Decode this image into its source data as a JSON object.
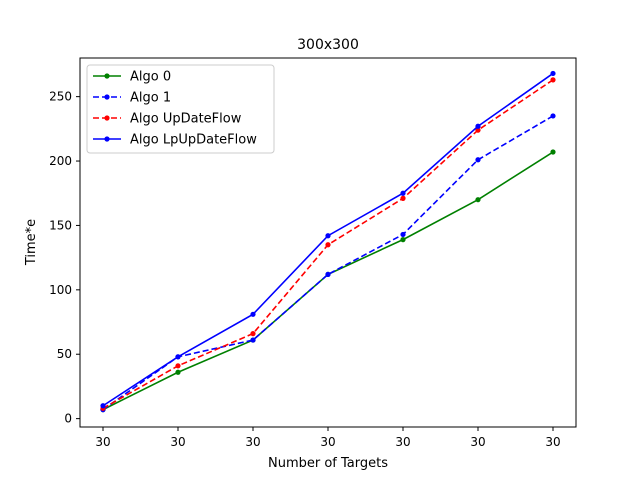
{
  "chart_data": {
    "type": "line",
    "title": "300x300",
    "xlabel": "Number of Targets",
    "ylabel": "Time*e",
    "categories": [
      "30",
      "30",
      "30",
      "30",
      "30",
      "30",
      "30"
    ],
    "ylim": [
      -6.5,
      280
    ],
    "yticks": [
      0,
      50,
      100,
      150,
      200,
      250
    ],
    "grid": false,
    "legend": "upper-left",
    "series": [
      {
        "name": "Algo 0",
        "color": "#008000",
        "dash": "solid",
        "values": [
          7,
          36,
          61,
          112,
          139,
          170,
          207
        ]
      },
      {
        "name": "Algo 1",
        "color": "#0000ff",
        "dash": "dashed",
        "values": [
          7,
          48,
          61,
          112,
          143,
          201,
          235
        ]
      },
      {
        "name": "Algo UpDateFlow",
        "color": "#ff0000",
        "dash": "dashed",
        "values": [
          8,
          41,
          66,
          135,
          171,
          224,
          263
        ]
      },
      {
        "name": "Algo LpUpDateFlow",
        "color": "#0000ff",
        "dash": "solid",
        "values": [
          10,
          48,
          81,
          142,
          175,
          227,
          268
        ]
      }
    ]
  }
}
